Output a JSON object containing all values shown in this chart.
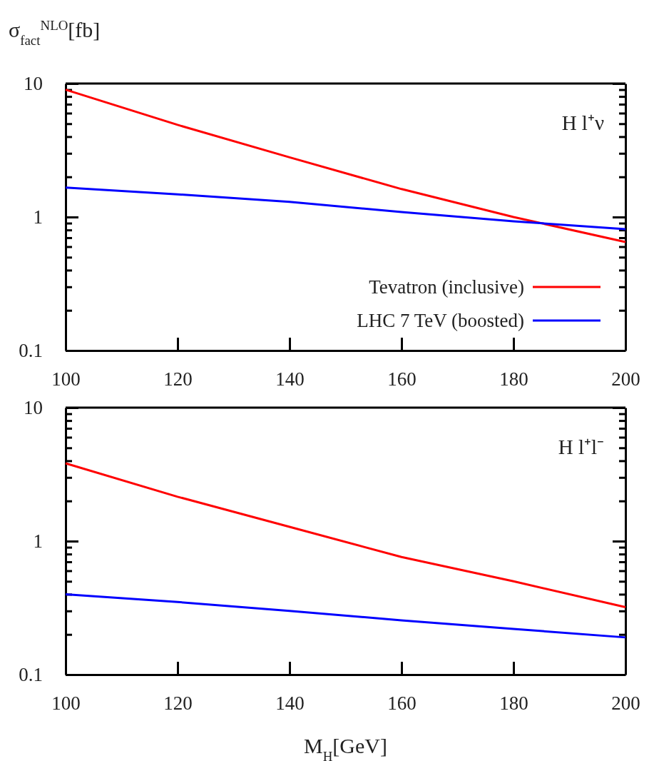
{
  "chart_data": [
    {
      "type": "line",
      "ylabel": "σ$_{fact}$$^{NLO}$[fb]",
      "x": [
        100,
        120,
        140,
        160,
        180,
        200
      ],
      "log": "y",
      "xlim": [
        100,
        200
      ],
      "xticks": [
        100,
        120,
        140,
        160,
        180,
        200
      ],
      "ylim": [
        0.1,
        10
      ],
      "yticks": [
        {
          "value": 0.1,
          "label": "0.1"
        },
        {
          "value": 0.2,
          "label": null
        },
        {
          "value": 0.3,
          "label": null
        },
        {
          "value": 0.4,
          "label": null
        },
        {
          "value": 0.5,
          "label": null
        },
        {
          "value": 0.6,
          "label": null
        },
        {
          "value": 0.7,
          "label": null
        },
        {
          "value": 0.8,
          "label": null
        },
        {
          "value": 0.9,
          "label": null
        },
        {
          "value": 1,
          "label": "1"
        },
        {
          "value": 2,
          "label": null
        },
        {
          "value": 3,
          "label": null
        },
        {
          "value": 4,
          "label": null
        },
        {
          "value": 5,
          "label": null
        },
        {
          "value": 6,
          "label": null
        },
        {
          "value": 7,
          "label": null
        },
        {
          "value": 8,
          "label": null
        },
        {
          "value": 9,
          "label": null
        },
        {
          "value": 10,
          "label": "10"
        }
      ],
      "legend": "bottom right",
      "annotations": [
        "H l⁺ν"
      ],
      "series": [
        {
          "name": "Tevatron (inclusive)",
          "color": "#ff0000",
          "values": [
            9.0,
            4.9,
            2.8,
            1.62,
            1.0,
            0.65
          ]
        },
        {
          "name": "LHC 7 TeV (boosted)",
          "color": "#0000ff",
          "values": [
            1.66,
            1.48,
            1.3,
            1.09,
            0.93,
            0.81
          ]
        }
      ]
    },
    {
      "type": "line",
      "xlabel": "M$_{H}$[GeV]",
      "x": [
        100,
        120,
        140,
        160,
        180,
        200
      ],
      "log": "y",
      "xlim": [
        100,
        200
      ],
      "xticks": [
        100,
        120,
        140,
        160,
        180,
        200
      ],
      "ylim": [
        0.1,
        10
      ],
      "yticks": [
        {
          "value": 0.1,
          "label": "0.1"
        },
        {
          "value": 0.2,
          "label": null
        },
        {
          "value": 0.3,
          "label": null
        },
        {
          "value": 0.4,
          "label": null
        },
        {
          "value": 0.5,
          "label": null
        },
        {
          "value": 0.6,
          "label": null
        },
        {
          "value": 0.7,
          "label": null
        },
        {
          "value": 0.8,
          "label": null
        },
        {
          "value": 0.9,
          "label": null
        },
        {
          "value": 1,
          "label": "1"
        },
        {
          "value": 2,
          "label": null
        },
        {
          "value": 3,
          "label": null
        },
        {
          "value": 4,
          "label": null
        },
        {
          "value": 5,
          "label": null
        },
        {
          "value": 6,
          "label": null
        },
        {
          "value": 7,
          "label": null
        },
        {
          "value": 8,
          "label": null
        },
        {
          "value": 9,
          "label": null
        },
        {
          "value": 10,
          "label": "10"
        }
      ],
      "annotations": [
        "H l⁺l⁻"
      ],
      "series": [
        {
          "color": "#ff0000",
          "values": [
            3.83,
            2.15,
            1.28,
            0.76,
            0.5,
            0.32
          ]
        },
        {
          "color": "#0000ff",
          "values": [
            0.4,
            0.35,
            0.3,
            0.255,
            0.22,
            0.19
          ]
        }
      ]
    }
  ]
}
